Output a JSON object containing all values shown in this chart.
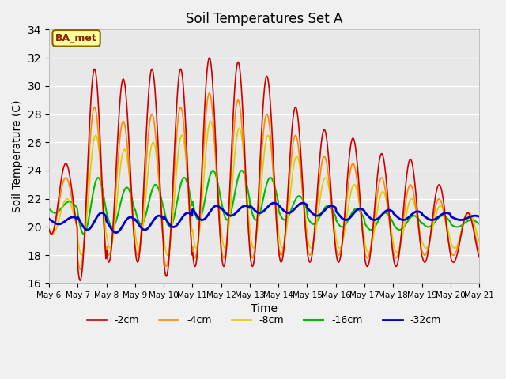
{
  "title": "Soil Temperatures Set A",
  "xlabel": "Time",
  "ylabel": "Soil Temperature (C)",
  "ylim": [
    16,
    34
  ],
  "yticks": [
    16,
    18,
    20,
    22,
    24,
    26,
    28,
    30,
    32,
    34
  ],
  "x_tick_labels": [
    "May 6",
    "May 7",
    "May 8",
    "May 9",
    "May 10",
    "May 11",
    "May 12",
    "May 13",
    "May 14",
    "May 15",
    "May 16",
    "May 17",
    "May 18",
    "May 19",
    "May 20",
    "May 21"
  ],
  "legend_labels": [
    "-2cm",
    "-4cm",
    "-8cm",
    "-16cm",
    "-32cm"
  ],
  "legend_colors": [
    "#cc0000",
    "#ff8800",
    "#ddcc00",
    "#00bb00",
    "#0000cc"
  ],
  "line_widths": [
    1.2,
    1.2,
    1.2,
    1.5,
    2.0
  ],
  "annotation_text": "BA_met",
  "annotation_facecolor": "#ffff99",
  "annotation_edgecolor": "#886600",
  "annotation_textcolor": "#882200",
  "background_color": "#e8e8e8",
  "grid_color": "#ffffff",
  "fig_background": "#f0f0f0",
  "n_days": 15,
  "n_per_day": 48,
  "peak_temps_2cm": [
    24.5,
    31.2,
    30.5,
    31.2,
    31.2,
    32.0,
    31.7,
    30.7,
    28.5,
    26.9,
    26.3,
    25.2,
    24.8,
    23.0,
    21.0
  ],
  "trough_temps_2cm": [
    19.5,
    16.2,
    17.5,
    17.5,
    16.5,
    17.2,
    17.2,
    17.2,
    17.5,
    17.5,
    17.5,
    17.2,
    17.2,
    17.5,
    17.5
  ],
  "peak_temps_4cm": [
    23.5,
    28.5,
    27.5,
    28.0,
    28.5,
    29.5,
    29.0,
    28.0,
    26.5,
    25.0,
    24.5,
    23.5,
    23.0,
    22.0,
    21.0
  ],
  "trough_temps_4cm": [
    19.5,
    17.0,
    18.0,
    18.0,
    17.2,
    17.8,
    17.8,
    17.8,
    18.0,
    18.0,
    18.0,
    17.8,
    17.8,
    18.0,
    18.0
  ],
  "peak_temps_8cm": [
    22.0,
    26.5,
    25.5,
    26.0,
    26.5,
    27.5,
    27.0,
    26.5,
    25.0,
    23.5,
    23.0,
    22.5,
    22.0,
    21.5,
    21.0
  ],
  "trough_temps_8cm": [
    19.5,
    18.0,
    18.5,
    18.5,
    18.0,
    18.5,
    18.5,
    18.5,
    18.5,
    18.5,
    18.5,
    18.2,
    18.2,
    18.5,
    18.5
  ],
  "peak_temps_16cm": [
    21.8,
    23.5,
    22.8,
    23.0,
    23.5,
    24.0,
    24.0,
    23.5,
    22.2,
    21.5,
    21.3,
    21.0,
    20.8,
    20.8,
    20.5
  ],
  "trough_temps_16cm": [
    21.0,
    19.5,
    20.0,
    20.2,
    20.0,
    20.5,
    20.5,
    20.5,
    20.5,
    20.2,
    20.0,
    19.8,
    19.8,
    20.0,
    20.0
  ],
  "peak_temps_32cm": [
    20.7,
    21.0,
    20.7,
    20.8,
    21.0,
    21.5,
    21.5,
    21.7,
    21.7,
    21.5,
    21.3,
    21.2,
    21.1,
    21.0,
    20.8
  ],
  "trough_temps_32cm": [
    20.2,
    19.8,
    19.6,
    19.8,
    20.0,
    20.5,
    20.8,
    21.0,
    21.0,
    20.8,
    20.5,
    20.5,
    20.5,
    20.5,
    20.5
  ],
  "phase_offsets_hours": {
    "2cm": 14,
    "4cm": 14,
    "8cm": 15,
    "16cm": 17,
    "32cm": 20
  }
}
